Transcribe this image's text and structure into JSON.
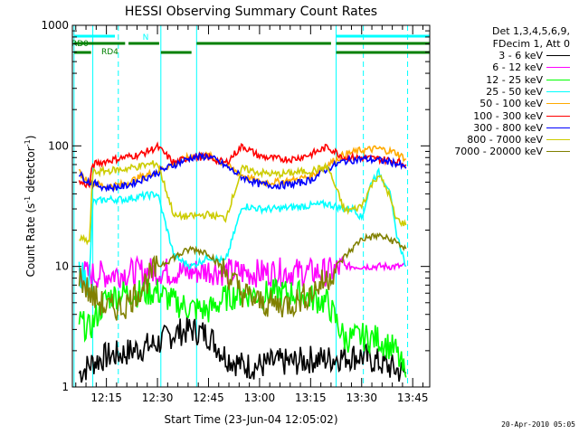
{
  "chart_data": {
    "type": "line",
    "title": "HESSI Observing Summary Count Rates",
    "xlabel": "Start Time (23-Jun-04 12:05:02)",
    "ylabel_prefix": "Count Rate (s",
    "ylabel_exp1": "-1",
    "ylabel_mid": " detector",
    "ylabel_exp2": "-1",
    "ylabel_suffix": ")",
    "y_scale": "log",
    "ylim": [
      1,
      1000
    ],
    "xlim_minutes": [
      725,
      830
    ],
    "x_ticks": [
      {
        "label": "12:15",
        "min": 735
      },
      {
        "label": "12:30",
        "min": 750
      },
      {
        "label": "12:45",
        "min": 765
      },
      {
        "label": "13:00",
        "min": 780
      },
      {
        "label": "13:15",
        "min": 795
      },
      {
        "label": "13:30",
        "min": 810
      },
      {
        "label": "13:45",
        "min": 825
      }
    ],
    "y_ticks": [
      {
        "label": "1",
        "value": 1
      },
      {
        "label": "10",
        "value": 10
      },
      {
        "label": "100",
        "value": 100
      },
      {
        "label": "1000",
        "value": 1000
      }
    ],
    "legend": {
      "header": [
        "Det 1,3,4,5,6,9,",
        "FDecim 1, Att 0"
      ],
      "placement": "right"
    },
    "series": [
      {
        "name": "3 - 6 keV",
        "color": "#000000",
        "x": [
          727,
          731,
          735,
          740,
          745,
          750,
          755,
          760,
          765,
          770,
          775,
          780,
          785,
          790,
          795,
          800,
          805,
          810,
          815,
          820,
          823
        ],
        "y": [
          1.3,
          1.6,
          1.8,
          1.9,
          2.1,
          2.3,
          2.8,
          3.0,
          2.7,
          1.8,
          1.5,
          1.5,
          1.6,
          1.6,
          1.7,
          1.7,
          1.8,
          1.8,
          1.6,
          1.4,
          1.3
        ]
      },
      {
        "name": "6 - 12 keV",
        "color": "#ff00ff",
        "x": [
          727,
          730,
          735,
          740,
          745,
          750,
          755,
          760,
          765,
          770,
          775,
          780,
          785,
          790,
          795,
          800,
          803,
          805,
          810,
          815,
          820,
          823
        ],
        "y": [
          9.0,
          8.5,
          8.6,
          8.8,
          9.0,
          9.2,
          9.0,
          9.0,
          9.3,
          9.0,
          8.9,
          8.8,
          9.0,
          9.0,
          8.9,
          9.0,
          9.5,
          10,
          10,
          10,
          10,
          10
        ]
      },
      {
        "name": "12 - 25 keV",
        "color": "#00ff00",
        "x": [
          727,
          730,
          735,
          740,
          745,
          750,
          755,
          760,
          765,
          770,
          775,
          780,
          785,
          790,
          795,
          800,
          805,
          810,
          815,
          820,
          823
        ],
        "y": [
          3.5,
          3.0,
          5.5,
          6.0,
          6.0,
          6.2,
          5.0,
          4.5,
          4.3,
          5.5,
          6.0,
          5.8,
          6.0,
          6.0,
          5.5,
          5.0,
          2.5,
          2.6,
          2.5,
          2.0,
          1.2
        ]
      },
      {
        "name": "25 - 50 keV",
        "color": "#00ffff",
        "x": [
          727,
          730,
          731,
          735,
          740,
          745,
          750,
          755,
          760,
          765,
          770,
          775,
          780,
          785,
          790,
          795,
          800,
          805,
          808,
          810,
          813,
          815,
          818,
          820,
          823
        ],
        "y": [
          9.0,
          7.5,
          34,
          36,
          36,
          38,
          40,
          12,
          10,
          12,
          11,
          32,
          30,
          30,
          31,
          32,
          33,
          30,
          30,
          25,
          52,
          60,
          45,
          20,
          10
        ]
      },
      {
        "name": "50 - 100 keV",
        "color": "#ffaa00",
        "x": [
          727,
          730,
          735,
          740,
          745,
          750,
          755,
          760,
          765,
          770,
          775,
          780,
          785,
          790,
          795,
          800,
          805,
          810,
          815,
          820,
          823
        ],
        "y": [
          60,
          50,
          46,
          48,
          55,
          62,
          72,
          82,
          83,
          70,
          57,
          50,
          50,
          52,
          56,
          70,
          85,
          92,
          95,
          88,
          78
        ]
      },
      {
        "name": "100 - 300 keV",
        "color": "#ff0000",
        "x": [
          727,
          730,
          731,
          735,
          740,
          745,
          750,
          755,
          760,
          765,
          770,
          775,
          780,
          785,
          790,
          795,
          800,
          805,
          810,
          815,
          820,
          823
        ],
        "y": [
          50,
          47,
          70,
          75,
          80,
          85,
          98,
          72,
          82,
          80,
          72,
          100,
          82,
          78,
          78,
          85,
          98,
          80,
          80,
          78,
          75,
          70
        ]
      },
      {
        "name": "300 - 800 keV",
        "color": "#0000ff",
        "x": [
          727,
          730,
          735,
          740,
          745,
          750,
          755,
          760,
          765,
          770,
          775,
          780,
          785,
          790,
          795,
          800,
          805,
          810,
          815,
          820,
          823
        ],
        "y": [
          58,
          50,
          45,
          46,
          52,
          60,
          70,
          80,
          82,
          68,
          55,
          48,
          47,
          48,
          52,
          65,
          75,
          78,
          76,
          72,
          65
        ]
      },
      {
        "name": "800 - 7000 keV",
        "color": "#cccc00",
        "x": [
          727,
          730,
          731,
          735,
          740,
          745,
          750,
          755,
          760,
          765,
          770,
          775,
          780,
          785,
          790,
          795,
          800,
          805,
          808,
          810,
          813,
          815,
          818,
          820,
          823
        ],
        "y": [
          17,
          16,
          60,
          62,
          64,
          68,
          72,
          26,
          26,
          27,
          25,
          65,
          60,
          58,
          60,
          62,
          67,
          29,
          30,
          32,
          48,
          58,
          40,
          25,
          22
        ]
      },
      {
        "name": "7000 - 20000 keV",
        "color": "#808000",
        "x": [
          727,
          730,
          735,
          740,
          745,
          750,
          755,
          760,
          765,
          770,
          775,
          780,
          785,
          790,
          795,
          800,
          805,
          810,
          815,
          820,
          823
        ],
        "y": [
          8.5,
          6.0,
          4.5,
          4.6,
          6.5,
          10,
          12,
          14,
          13,
          9,
          6,
          5,
          4.8,
          5,
          6,
          8,
          12,
          17,
          18,
          16,
          14
        ]
      }
    ],
    "attenuator_bars": [
      {
        "label": "N",
        "color": "#00ffff",
        "level": "top",
        "segments": [
          [
            725.5,
            737.5
          ],
          [
            802.5,
            830
          ]
        ]
      },
      {
        "label": "RD0",
        "color": "#008000",
        "level": "middle",
        "segments": [
          [
            725.5,
            740.5
          ],
          [
            741.5,
            750.5
          ],
          [
            761.5,
            801
          ],
          [
            802.5,
            830
          ]
        ]
      },
      {
        "label": "RD4",
        "color": "#008000",
        "level": "lower",
        "segments": [
          [
            725.5,
            730.5
          ],
          [
            751,
            760
          ],
          [
            802.5,
            830
          ]
        ]
      }
    ],
    "vertical_markers": {
      "solid": {
        "color": "#00ffff",
        "x": [
          725.5,
          731,
          751,
          761.5,
          802.5
        ]
      },
      "dashed": {
        "color": "#00ffff",
        "x": [
          738.5,
          810.5,
          823.5
        ]
      }
    }
  },
  "footer": "20-Apr-2010 05:05"
}
